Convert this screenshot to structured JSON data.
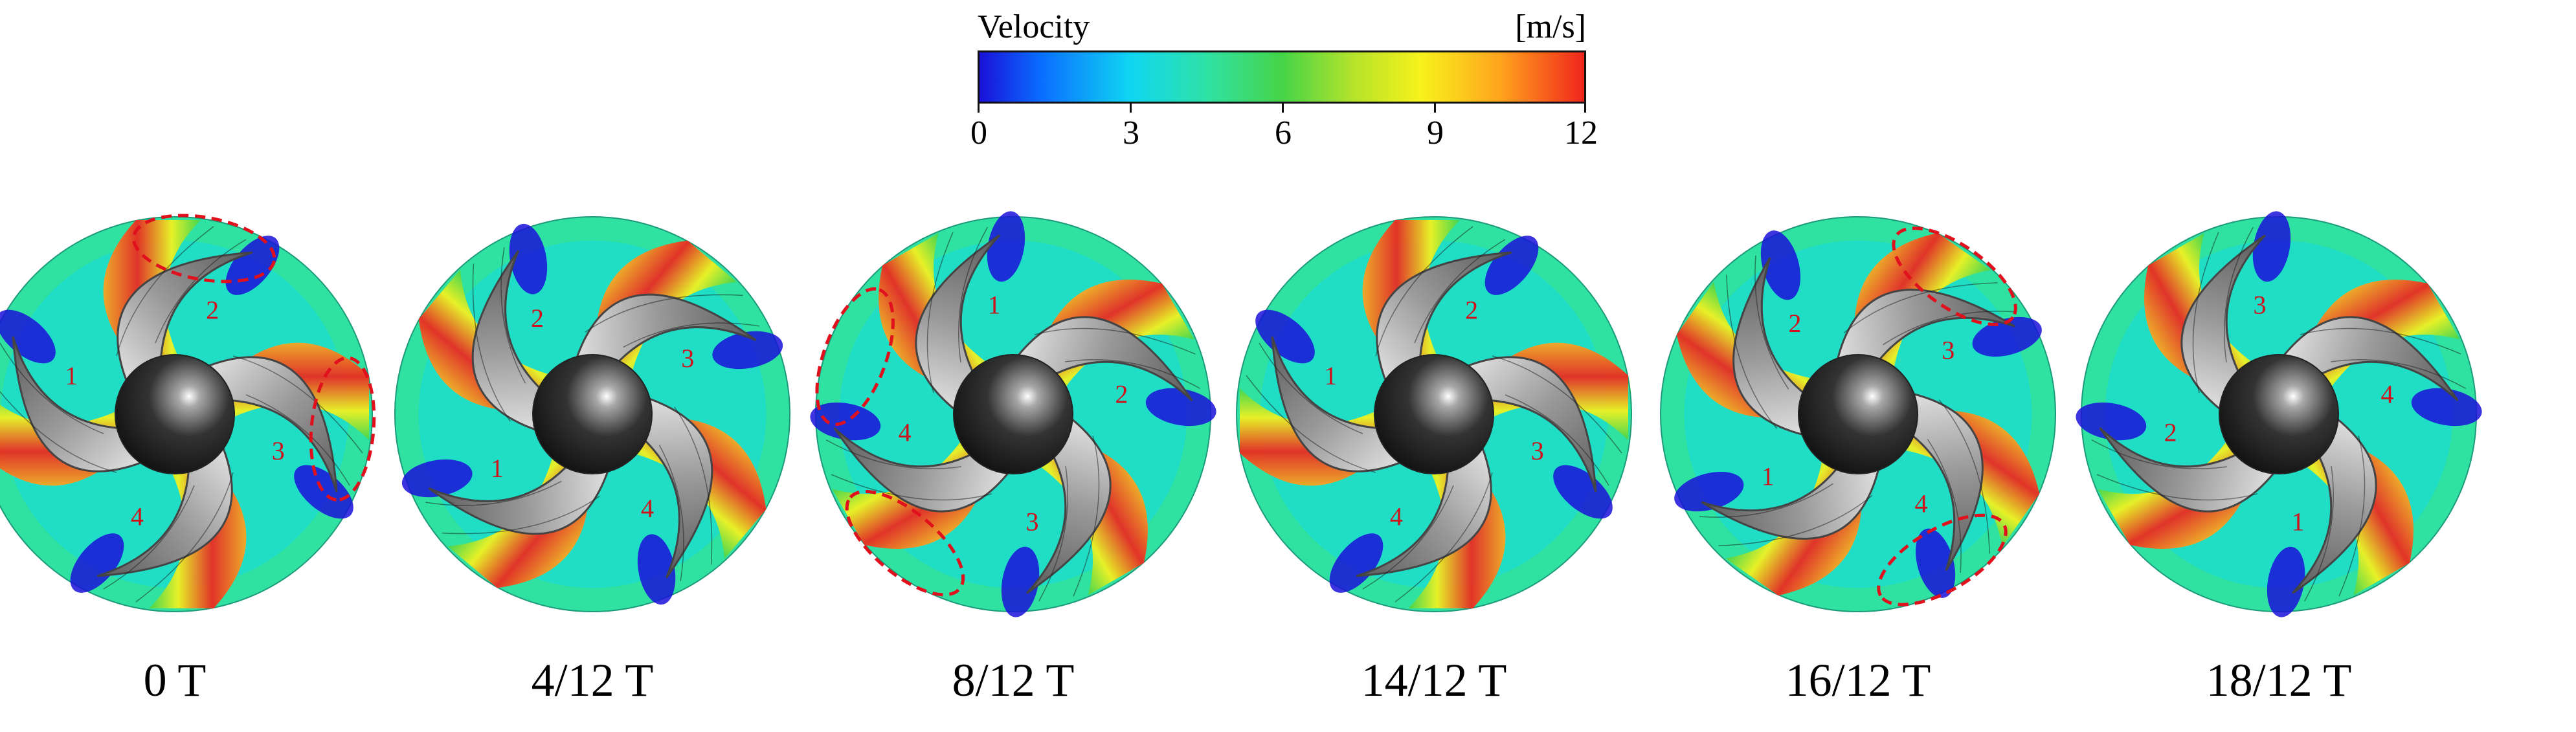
{
  "legend": {
    "title": "Velocity",
    "unit": "[m/s]",
    "ticks": [
      "0",
      "3",
      "6",
      "9",
      "12"
    ]
  },
  "panels": [
    {
      "label": "0 T",
      "blades": [
        "1",
        "2",
        "3",
        "4"
      ],
      "vortex_regions": 2
    },
    {
      "label": "4/12 T",
      "blades": [
        "2",
        "3",
        "4",
        "1"
      ],
      "vortex_regions": 0
    },
    {
      "label": "8/12 T",
      "blades": [
        "4",
        "1",
        "2",
        "3"
      ],
      "vortex_regions": 2
    },
    {
      "label": "14/12 T",
      "blades": [
        "1",
        "2",
        "3",
        "4"
      ],
      "vortex_regions": 0
    },
    {
      "label": "16/12 T",
      "blades": [
        "2",
        "3",
        "4",
        "1"
      ],
      "vortex_regions": 2
    },
    {
      "label": "18/12 T",
      "blades": [
        "3",
        "4",
        "1",
        "2"
      ],
      "vortex_regions": 0
    }
  ],
  "colors": {
    "low": "#1a10d8",
    "mid": "#45d448",
    "high": "#f0251c",
    "blade_label": "#d0101a",
    "vortex_marker": "#e0101c"
  }
}
